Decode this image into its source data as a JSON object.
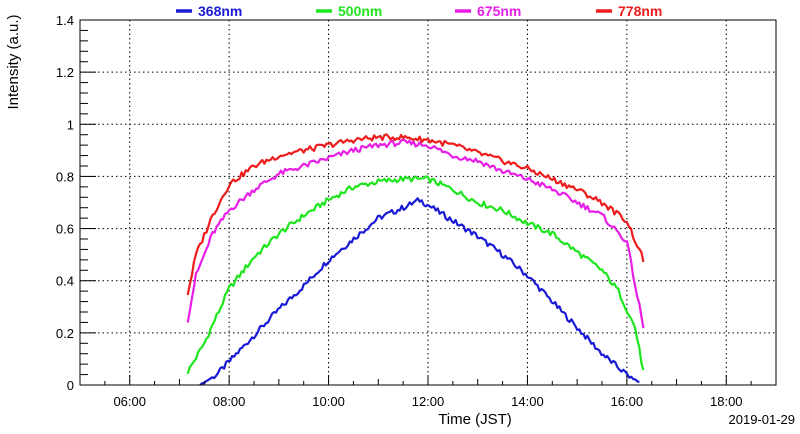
{
  "chart_data": {
    "type": "line",
    "xlabel": "Time (JST)",
    "ylabel": "Intensity (a.u.)",
    "date_label": "2019-01-29",
    "xlim": [
      "05:00",
      "19:00"
    ],
    "ylim": [
      0,
      1.4
    ],
    "x_ticks": [
      "06:00",
      "08:00",
      "10:00",
      "12:00",
      "14:00",
      "16:00",
      "18:00"
    ],
    "y_ticks": [
      "0",
      "0.2",
      "0.4",
      "0.6",
      "0.8",
      "1",
      "1.2",
      "1.4"
    ],
    "grid": true,
    "legend_position": "top",
    "series": [
      {
        "name": "368nm",
        "color": "#1a1ad6",
        "x": [
          "07:25",
          "07:45",
          "08:00",
          "08:30",
          "09:00",
          "09:30",
          "10:00",
          "10:30",
          "11:00",
          "11:30",
          "11:50",
          "12:00",
          "12:30",
          "13:00",
          "13:30",
          "14:00",
          "14:30",
          "15:00",
          "15:30",
          "16:00",
          "16:15"
        ],
        "values": [
          0.0,
          0.04,
          0.09,
          0.19,
          0.29,
          0.38,
          0.48,
          0.56,
          0.64,
          0.68,
          0.71,
          0.69,
          0.63,
          0.57,
          0.5,
          0.42,
          0.32,
          0.22,
          0.12,
          0.04,
          0.01
        ]
      },
      {
        "name": "500nm",
        "color": "#1ee61e",
        "x": [
          "07:10",
          "07:30",
          "08:00",
          "08:30",
          "09:00",
          "09:30",
          "10:00",
          "10:30",
          "11:00",
          "11:30",
          "12:00",
          "12:30",
          "13:00",
          "13:30",
          "14:00",
          "14:30",
          "15:00",
          "15:30",
          "15:50",
          "16:10",
          "16:20"
        ],
        "values": [
          0.05,
          0.16,
          0.37,
          0.49,
          0.58,
          0.65,
          0.71,
          0.76,
          0.78,
          0.79,
          0.79,
          0.75,
          0.7,
          0.67,
          0.62,
          0.58,
          0.51,
          0.44,
          0.36,
          0.22,
          0.05
        ]
      },
      {
        "name": "675nm",
        "color": "#e81ee8",
        "x": [
          "07:10",
          "07:20",
          "07:40",
          "08:00",
          "08:30",
          "09:00",
          "09:30",
          "10:00",
          "10:30",
          "11:00",
          "11:30",
          "12:00",
          "12:30",
          "13:00",
          "13:30",
          "14:00",
          "14:30",
          "15:00",
          "15:30",
          "16:00",
          "16:20"
        ],
        "values": [
          0.25,
          0.42,
          0.58,
          0.67,
          0.75,
          0.81,
          0.84,
          0.87,
          0.9,
          0.92,
          0.93,
          0.92,
          0.88,
          0.86,
          0.82,
          0.79,
          0.75,
          0.7,
          0.65,
          0.55,
          0.22
        ]
      },
      {
        "name": "778nm",
        "color": "#ee1c1c",
        "x": [
          "07:10",
          "07:20",
          "07:40",
          "08:00",
          "08:30",
          "09:00",
          "09:30",
          "10:00",
          "10:30",
          "11:00",
          "11:30",
          "12:00",
          "12:30",
          "13:00",
          "13:30",
          "14:00",
          "14:30",
          "15:00",
          "15:30",
          "16:00",
          "16:20"
        ],
        "values": [
          0.35,
          0.5,
          0.65,
          0.77,
          0.84,
          0.88,
          0.9,
          0.92,
          0.94,
          0.95,
          0.95,
          0.94,
          0.92,
          0.89,
          0.86,
          0.83,
          0.79,
          0.75,
          0.7,
          0.63,
          0.48
        ]
      }
    ]
  }
}
